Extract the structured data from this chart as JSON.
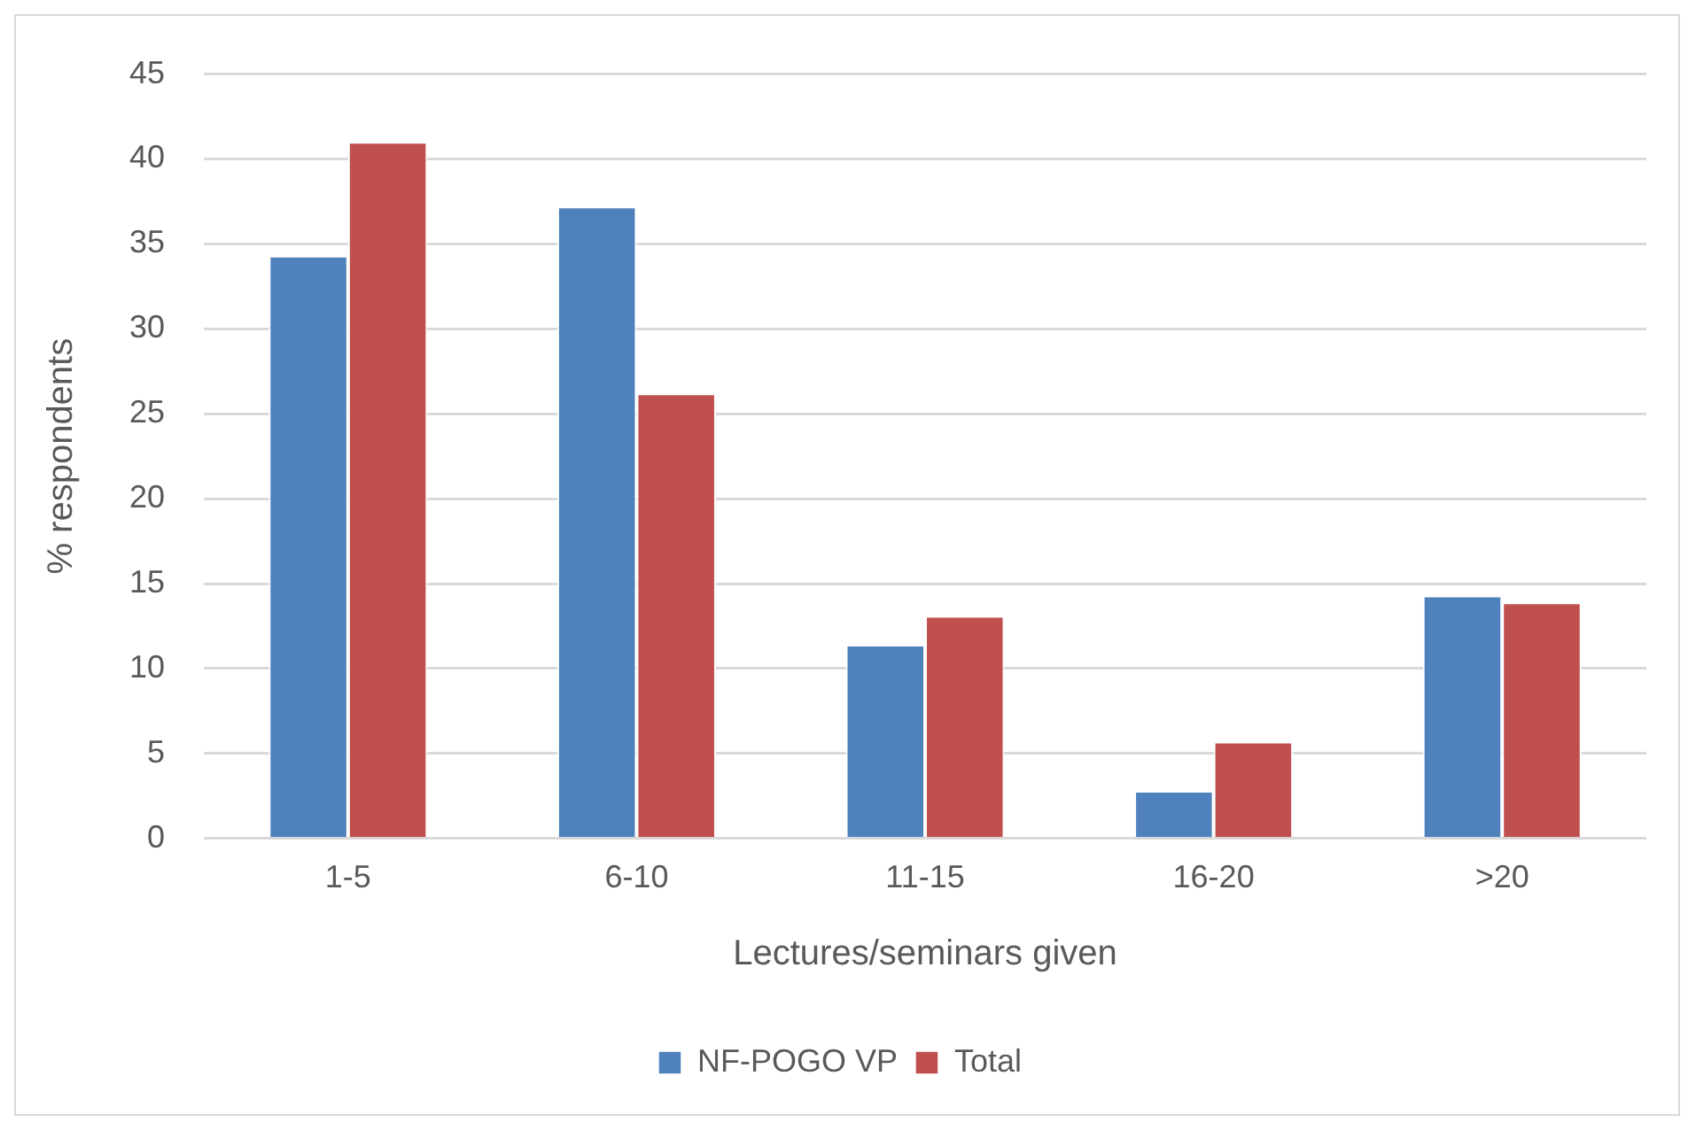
{
  "chart_data": {
    "type": "bar",
    "xlabel": "Lectures/seminars given",
    "ylabel": "% respondents",
    "categories": [
      "1-5",
      "6-10",
      "11-15",
      "16-20",
      ">20"
    ],
    "series": [
      {
        "name": "NF-POGO VP",
        "color": "#4f81bd",
        "values": [
          34.3,
          37.2,
          11.4,
          2.8,
          14.3
        ]
      },
      {
        "name": "Total",
        "color": "#c0504d",
        "values": [
          41.0,
          26.2,
          13.1,
          5.7,
          13.9
        ]
      }
    ],
    "ylim": [
      0,
      45
    ],
    "yticks": [
      0,
      5,
      10,
      15,
      20,
      25,
      30,
      35,
      40,
      45
    ],
    "grid": "y",
    "legend": "bottom"
  }
}
